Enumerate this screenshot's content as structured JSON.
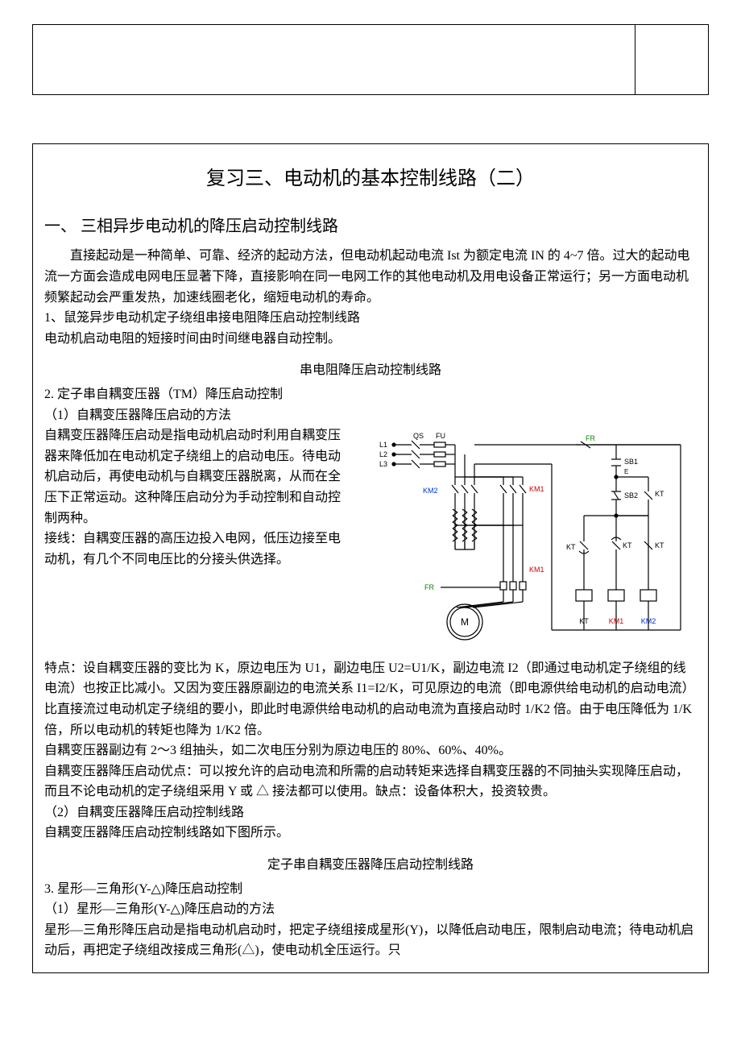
{
  "title": "复习三、电动机的基本控制线路（二）",
  "section1_heading": "一、 三相异步电动机的降压启动控制线路",
  "intro": "直接起动是一种简单、可靠、经济的起动方法，但电动机起动电流 Ist 为额定电流 IN 的 4~7 倍。过大的起动电流一方面会造成电网电压显著下降，直接影响在同一电网工作的其他电动机及用电设备正常运行；另一方面电动机频繁起动会严重发热，加速线圈老化，缩短电动机的寿命。",
  "p1a": "1、鼠笼异步电动机定子绕组串接电阻降压启动控制线路",
  "p1b": "电动机启动电阻的短接时间由时间继电器自动控制。",
  "fig1_caption": "串电阻降压启动控制线路",
  "p2_head": "2. 定子串自耦变压器（TM）降压启动控制",
  "p2_sub1": "（1）自耦变压器降压启动的方法",
  "p2_wrap1": "自耦变压器降压启动是指电动机启动时利用自耦变压器来降低加在电动机定子绕组上的启动电压。待电动机启动后，再使电动机与自耦变压器脱离，从而在全压下正常运动。这种降压启动分为手动控制和自动控制两种。",
  "p2_wrap2": "接线：自耦变压器的高压边投入电网，低压边接至电动机，有几个不同电压比的分接头供选择。",
  "p2_body1": "特点：设自耦变压器的变比为 K，原边电压为 U1，副边电压 U2=U1/K，副边电流 I2（即通过电动机定子绕组的线电流）也按正比减小。又因为变压器原副边的电流关系 I1=I2/K，可见原边的电流（即电源供给电动机的启动电流）比直接流过电动机定子绕组的要小，即此时电源供给电动机的启动电流为直接启动时 1/K2 倍。由于电压降低为 1/K 倍，所以电动机的转矩也降为 1/K2 倍。",
  "p2_body2": "自耦变压器副边有 2～3 组抽头，如二次电压分别为原边电压的 80%、60%、40%。",
  "p2_body3": "自耦变压器降压启动优点：可以按允许的启动电流和所需的启动转矩来选择自耦变压器的不同抽头实现降压启动，而且不论电动机的定子绕组采用 Y 或 △ 接法都可以使用。缺点：设备体积大，投资较贵。",
  "p2_sub2": "（2）自耦变压器降压启动控制线路",
  "p2_sub2_body": "自耦变压器降压启动控制线路如下图所示。",
  "fig2_caption": "定子串自耦变压器降压启动控制线路",
  "p3_head": "3. 星形—三角形(Y-△)降压启动控制",
  "p3_sub1": "（1）星形—三角形(Y-△)降压启动的方法",
  "p3_body": "星形—三角形降压启动是指电动机启动时，把定子绕组接成星形(Y)，以降低启动电压，限制启动电流；待电动机启动后，再把定子绕组改接成三角形(△)，使电动机全压运行。只",
  "diagram": {
    "labels": {
      "L1": "L1",
      "L2": "L2",
      "L3": "L3",
      "QS": "QS",
      "FU": "FU",
      "KM2_left": "KM2",
      "KM1_left": "KM1",
      "FR_left": "FR",
      "FR_right": "FR",
      "M": "M",
      "SB1": "SB1",
      "SB2": "SB2",
      "KT": "KT",
      "KM1_bottom": "KM1",
      "KM2_bottom": "KM2",
      "KT_bottom": "KT",
      "KM1_col": "KM1"
    },
    "colors": {
      "wire": "#000000",
      "green": "#008800",
      "red": "#cc0000",
      "blue": "#0033cc",
      "motor_fill": "#ffffff"
    },
    "font_size_small": 9,
    "font_size_label": 10,
    "stroke_width": 1.2
  }
}
